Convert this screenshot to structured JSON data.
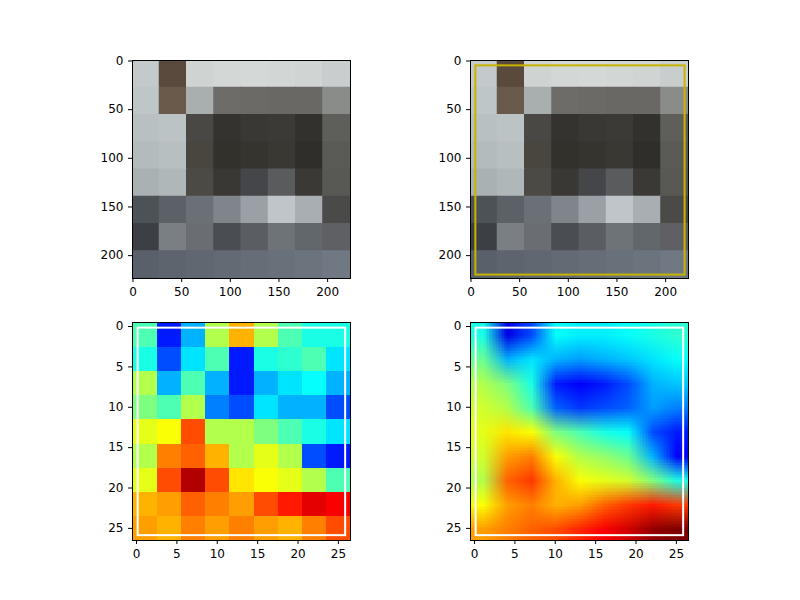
{
  "chart_data": [
    {
      "type": "image",
      "xlim": [
        -0.5,
        223.5
      ],
      "ylim": [
        223.5,
        -0.5
      ],
      "xticks": [
        0,
        50,
        100,
        150,
        200
      ],
      "yticks": [
        0,
        50,
        100,
        150,
        200
      ],
      "pixels": [
        [
          "#c4cacb",
          "#5a4a3e",
          "#cfd4d3",
          "#d3d7d6",
          "#d4d8d7",
          "#d2d6d5",
          "#d0d4d3",
          "#c8cdcd"
        ],
        [
          "#bfc6c7",
          "#6a5a4c",
          "#a9aeae",
          "#6e6c68",
          "#6c6a66",
          "#6a6864",
          "#6a6864",
          "#8a8c8a"
        ],
        [
          "#b9c0c1",
          "#bcc3c4",
          "#4a4844",
          "#35332f",
          "#3a3834",
          "#3c3a36",
          "#33312d",
          "#5e5e5a"
        ],
        [
          "#b4bbbc",
          "#b8bfc0",
          "#48463f",
          "#33312c",
          "#36342f",
          "#3a3833",
          "#302e2a",
          "#5a5a56"
        ],
        [
          "#aab1b3",
          "#b0b7b9",
          "#4c4a44",
          "#3a3834",
          "#45464a",
          "#5a5b5c",
          "#3a3936",
          "#585855"
        ],
        [
          "#4d5257",
          "#5b6166",
          "#6a7075",
          "#7f858a",
          "#9aa0a5",
          "#c0c5c9",
          "#a9aeb2",
          "#4a4a48"
        ],
        [
          "#3c4044",
          "#7a7f83",
          "#6a6e72",
          "#4a4e52",
          "#5a5e62",
          "#6e7378",
          "#62676b",
          "#5e6064"
        ],
        [
          "#59606a",
          "#5d646d",
          "#606770",
          "#636a73",
          "#666d76",
          "#68707a",
          "#6b737d",
          "#707883"
        ]
      ]
    },
    {
      "type": "image",
      "xlim": [
        -0.5,
        223.5
      ],
      "ylim": [
        223.5,
        -0.5
      ],
      "xticks": [
        0,
        50,
        100,
        150,
        200
      ],
      "yticks": [
        0,
        50,
        100,
        150,
        200
      ],
      "pixels": [
        [
          "#c4cacb",
          "#5a4a3e",
          "#cfd4d3",
          "#d3d7d6",
          "#d4d8d7",
          "#d2d6d5",
          "#d0d4d3",
          "#c8cdcd"
        ],
        [
          "#bfc6c7",
          "#6a5a4c",
          "#a9aeae",
          "#6e6c68",
          "#6c6a66",
          "#6a6864",
          "#6a6864",
          "#8a8c8a"
        ],
        [
          "#b9c0c1",
          "#bcc3c4",
          "#4a4844",
          "#35332f",
          "#3a3834",
          "#3c3a36",
          "#33312d",
          "#5e5e5a"
        ],
        [
          "#b4bbbc",
          "#b8bfc0",
          "#48463f",
          "#33312c",
          "#36342f",
          "#3a3833",
          "#302e2a",
          "#5a5a56"
        ],
        [
          "#aab1b3",
          "#b0b7b9",
          "#4c4a44",
          "#3a3834",
          "#45464a",
          "#5a5b5c",
          "#3a3936",
          "#585855"
        ],
        [
          "#4d5257",
          "#5b6166",
          "#6a7075",
          "#7f858a",
          "#9aa0a5",
          "#c0c5c9",
          "#a9aeb2",
          "#4a4a48"
        ],
        [
          "#3c4044",
          "#7a7f83",
          "#6a6e72",
          "#4a4e52",
          "#5a5e62",
          "#6e7378",
          "#62676b",
          "#5e6064"
        ],
        [
          "#59606a",
          "#5d646d",
          "#606770",
          "#636a73",
          "#666d76",
          "#68707a",
          "#6b737d",
          "#707883"
        ]
      ],
      "box": {
        "x1": 5,
        "y1": 5,
        "x2": 220,
        "y2": 220,
        "color": "#c8b400"
      }
    },
    {
      "type": "heatmap",
      "xlim": [
        -0.5,
        26.5
      ],
      "ylim": [
        26.5,
        -0.5
      ],
      "xticks": [
        0,
        5,
        10,
        15,
        20,
        25
      ],
      "yticks": [
        0,
        5,
        10,
        15,
        20,
        25
      ],
      "zlim": [
        0,
        1
      ],
      "cells": [
        [
          0.45,
          0.15,
          0.3,
          0.55,
          0.7,
          0.55,
          0.45,
          0.4,
          0.4
        ],
        [
          0.4,
          0.2,
          0.35,
          0.45,
          0.15,
          0.4,
          0.42,
          0.45,
          0.35
        ],
        [
          0.55,
          0.3,
          0.45,
          0.3,
          0.15,
          0.3,
          0.35,
          0.38,
          0.3
        ],
        [
          0.5,
          0.45,
          0.55,
          0.25,
          0.2,
          0.35,
          0.3,
          0.3,
          0.2
        ],
        [
          0.6,
          0.62,
          0.8,
          0.55,
          0.55,
          0.5,
          0.45,
          0.4,
          0.35
        ],
        [
          0.55,
          0.75,
          0.78,
          0.7,
          0.55,
          0.6,
          0.55,
          0.2,
          0.15
        ],
        [
          0.6,
          0.8,
          0.95,
          0.8,
          0.65,
          0.62,
          0.6,
          0.55,
          0.45
        ],
        [
          0.7,
          0.72,
          0.78,
          0.75,
          0.72,
          0.8,
          0.85,
          0.9,
          0.88
        ],
        [
          0.72,
          0.7,
          0.75,
          0.72,
          0.75,
          0.72,
          0.7,
          0.75,
          0.8
        ]
      ],
      "box": {
        "x1": 0.2,
        "y1": 0.2,
        "x2": 25.9,
        "y2": 25.9,
        "color": "#ffffff"
      }
    },
    {
      "type": "heatmap",
      "xlim": [
        -0.5,
        26.5
      ],
      "ylim": [
        26.5,
        -0.5
      ],
      "xticks": [
        0,
        5,
        10,
        15,
        20,
        25
      ],
      "yticks": [
        0,
        5,
        10,
        15,
        20,
        25
      ],
      "zlim": [
        0,
        1
      ],
      "cells": [
        [
          0.4,
          0.1,
          0.2,
          0.38,
          0.36,
          0.36,
          0.38,
          0.4,
          0.42
        ],
        [
          0.48,
          0.3,
          0.35,
          0.3,
          0.28,
          0.3,
          0.32,
          0.35,
          0.38
        ],
        [
          0.55,
          0.5,
          0.4,
          0.15,
          0.12,
          0.15,
          0.2,
          0.3,
          0.32
        ],
        [
          0.58,
          0.55,
          0.45,
          0.22,
          0.18,
          0.2,
          0.22,
          0.28,
          0.25
        ],
        [
          0.6,
          0.65,
          0.62,
          0.5,
          0.45,
          0.4,
          0.38,
          0.2,
          0.15
        ],
        [
          0.58,
          0.72,
          0.75,
          0.62,
          0.55,
          0.52,
          0.48,
          0.3,
          0.12
        ],
        [
          0.55,
          0.78,
          0.82,
          0.7,
          0.62,
          0.6,
          0.58,
          0.5,
          0.4
        ],
        [
          0.62,
          0.72,
          0.75,
          0.7,
          0.72,
          0.78,
          0.82,
          0.85,
          0.82
        ],
        [
          0.72,
          0.75,
          0.78,
          0.8,
          0.84,
          0.88,
          0.92,
          0.98,
          1.0
        ]
      ],
      "box": {
        "x1": 0.2,
        "y1": 0.2,
        "x2": 25.9,
        "y2": 25.9,
        "color": "#ffffff"
      }
    }
  ]
}
